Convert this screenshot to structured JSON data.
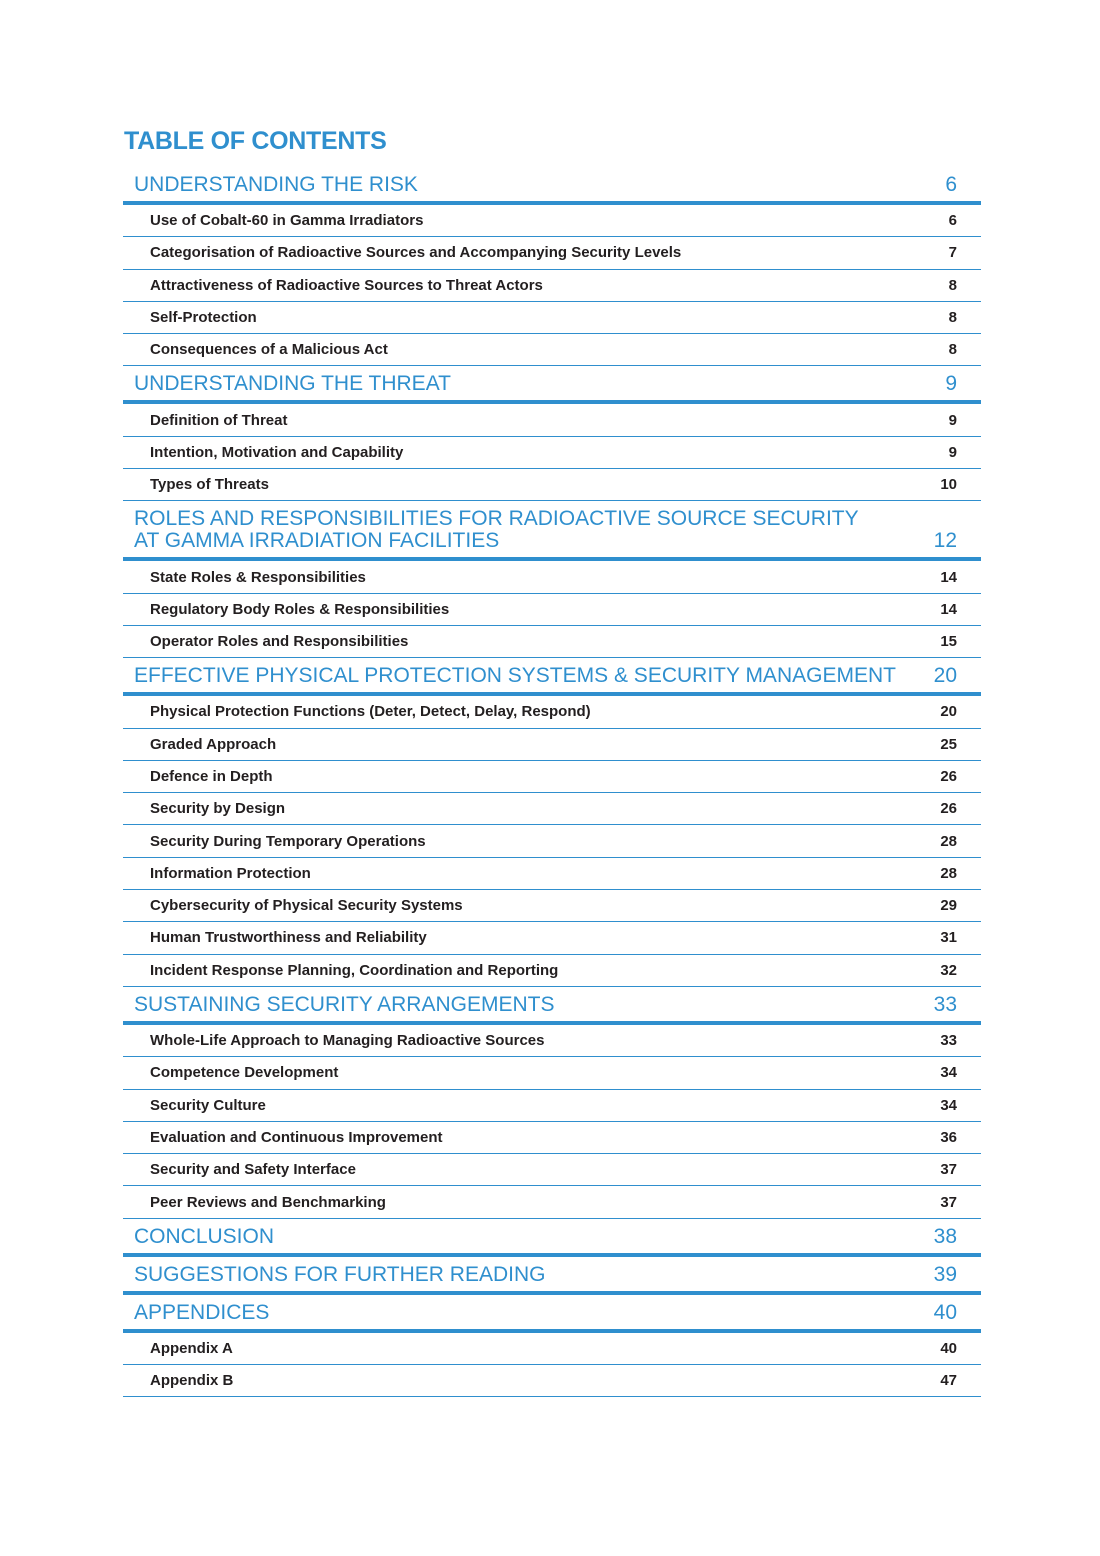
{
  "title": "TABLE OF CONTENTS",
  "accent_color": "#2f8fce",
  "sections": [
    {
      "label": "UNDERSTANDING THE RISK",
      "page": "6",
      "items": [
        {
          "label": "Use of Cobalt-60 in Gamma Irradiators",
          "page": "6"
        },
        {
          "label": "Categorisation of Radioactive Sources and Accompanying Security Levels",
          "page": "7"
        },
        {
          "label": "Attractiveness of Radioactive Sources to Threat Actors",
          "page": "8"
        },
        {
          "label": "Self-Protection",
          "page": "8"
        },
        {
          "label": "Consequences of a Malicious Act",
          "page": "8"
        }
      ]
    },
    {
      "label": "UNDERSTANDING THE THREAT",
      "page": "9",
      "items": [
        {
          "label": "Definition of Threat",
          "page": "9"
        },
        {
          "label": "Intention, Motivation and Capability",
          "page": "9"
        },
        {
          "label": "Types of Threats",
          "page": "10"
        }
      ]
    },
    {
      "label": "ROLES AND RESPONSIBILITIES FOR RADIOACTIVE SOURCE SECURITY",
      "label2": "AT GAMMA IRRADIATION FACILITIES",
      "page": "12",
      "items": [
        {
          "label": "State Roles & Responsibilities",
          "page": "14"
        },
        {
          "label": "Regulatory Body Roles & Responsibilities",
          "page": "14"
        },
        {
          "label": "Operator Roles and Responsibilities",
          "page": "15"
        }
      ]
    },
    {
      "label": "EFFECTIVE PHYSICAL PROTECTION SYSTEMS & SECURITY MANAGEMENT",
      "page": "20",
      "items": [
        {
          "label": "Physical Protection Functions (Deter, Detect, Delay, Respond)",
          "page": "20"
        },
        {
          "label": "Graded Approach",
          "page": "25"
        },
        {
          "label": "Defence in Depth",
          "page": "26"
        },
        {
          "label": "Security by Design",
          "page": "26"
        },
        {
          "label": "Security During Temporary Operations",
          "page": "28"
        },
        {
          "label": "Information Protection",
          "page": "28"
        },
        {
          "label": "Cybersecurity of Physical Security Systems",
          "page": "29"
        },
        {
          "label": "Human Trustworthiness and Reliability",
          "page": "31"
        },
        {
          "label": "Incident Response Planning, Coordination and Reporting",
          "page": "32"
        }
      ]
    },
    {
      "label": "SUSTAINING SECURITY ARRANGEMENTS",
      "page": "33",
      "items": [
        {
          "label": "Whole-Life Approach to Managing Radioactive Sources",
          "page": "33"
        },
        {
          "label": "Competence Development",
          "page": "34"
        },
        {
          "label": "Security Culture",
          "page": "34"
        },
        {
          "label": "Evaluation and Continuous Improvement",
          "page": "36"
        },
        {
          "label": "Security and Safety Interface",
          "page": "37"
        },
        {
          "label": "Peer Reviews and Benchmarking",
          "page": "37"
        }
      ]
    },
    {
      "label": "CONCLUSION",
      "page": "38",
      "items": []
    },
    {
      "label": "SUGGESTIONS FOR FURTHER READING",
      "page": "39",
      "items": []
    },
    {
      "label": "APPENDICES",
      "page": "40",
      "items": [
        {
          "label": "Appendix A",
          "page": "40"
        },
        {
          "label": "Appendix B",
          "page": "47"
        }
      ]
    }
  ]
}
